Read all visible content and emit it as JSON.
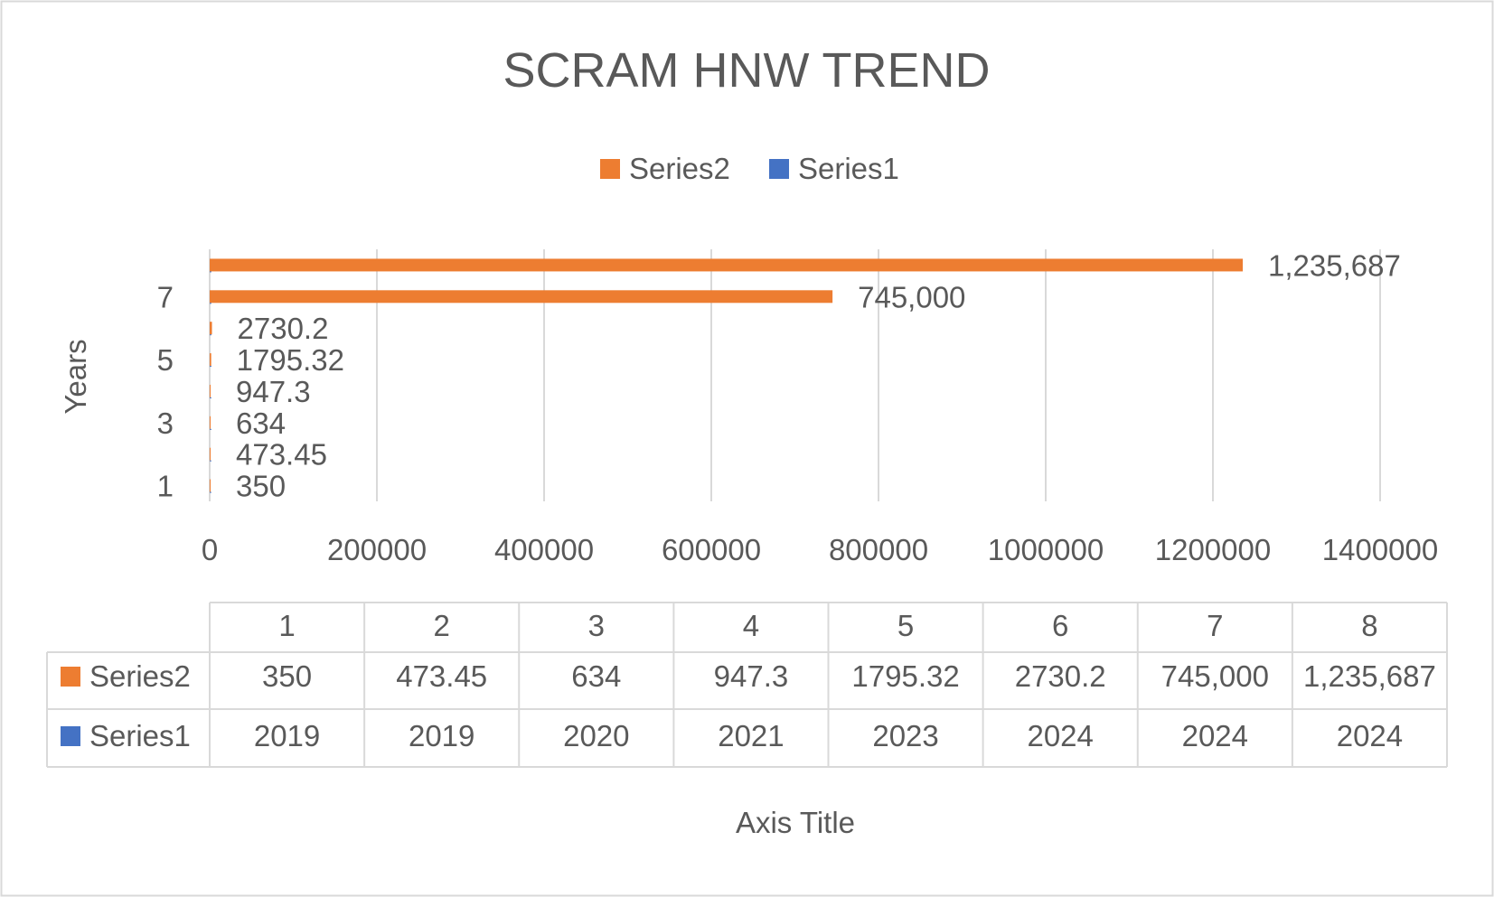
{
  "chart_data": {
    "type": "bar",
    "orientation": "horizontal",
    "title": "SCRAM HNW TREND",
    "ylabel": "Years",
    "xlabel": "Axis Title",
    "xlim": [
      0,
      1400000
    ],
    "x_ticks": [
      "0",
      "200000",
      "400000",
      "600000",
      "800000",
      "1000000",
      "1200000",
      "1400000"
    ],
    "y_tick_labels": [
      "1",
      "3",
      "5",
      "7"
    ],
    "categories": [
      "1",
      "2",
      "3",
      "4",
      "5",
      "6",
      "7",
      "8"
    ],
    "legend_position": "top",
    "grid": true,
    "series": [
      {
        "name": "Series2",
        "color": "#ED7D31",
        "values": [
          350,
          473.45,
          634,
          947.3,
          1795.32,
          2730.2,
          745000,
          1235687
        ],
        "labels": [
          "350",
          "473.45",
          "634",
          "947.3",
          "1795.32",
          "2730.2",
          "745,000",
          "1,235,687"
        ]
      },
      {
        "name": "Series1",
        "color": "#4472C4",
        "values": [
          2019,
          2019,
          2020,
          2021,
          2023,
          2024,
          2024,
          2024
        ],
        "labels": [
          "2019",
          "2019",
          "2020",
          "2021",
          "2023",
          "2024",
          "2024",
          "2024"
        ]
      }
    ]
  }
}
